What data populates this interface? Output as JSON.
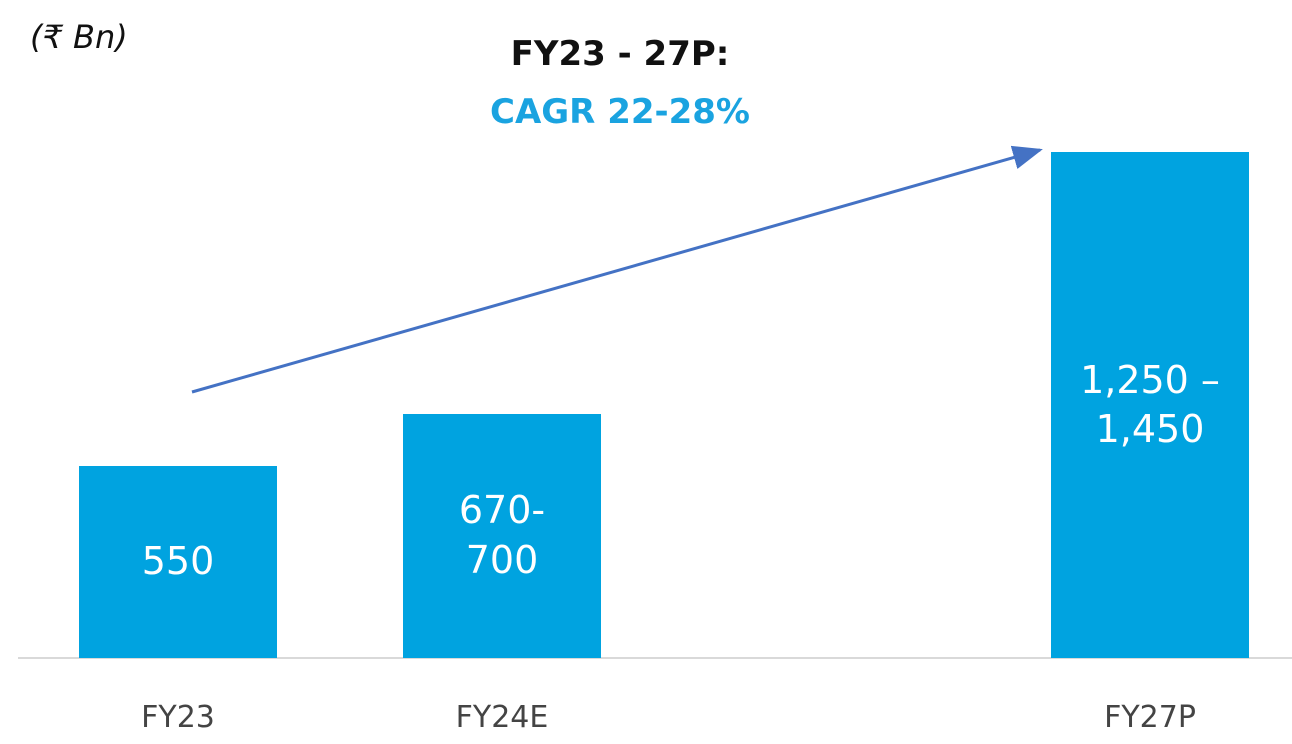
{
  "chart_data": {
    "type": "bar",
    "unit_label": "(₹ Bn)",
    "title": "FY23 - 27P:",
    "subtitle": "CAGR 22-28%",
    "categories": [
      "FY23",
      "FY24E",
      null,
      "FY27P"
    ],
    "values": [
      550,
      700,
      null,
      1450
    ],
    "value_labels": [
      "550",
      "670-700",
      null,
      "1,250 – 1,450"
    ],
    "color": "#00a3e0",
    "ylim": [
      0,
      1500
    ]
  }
}
